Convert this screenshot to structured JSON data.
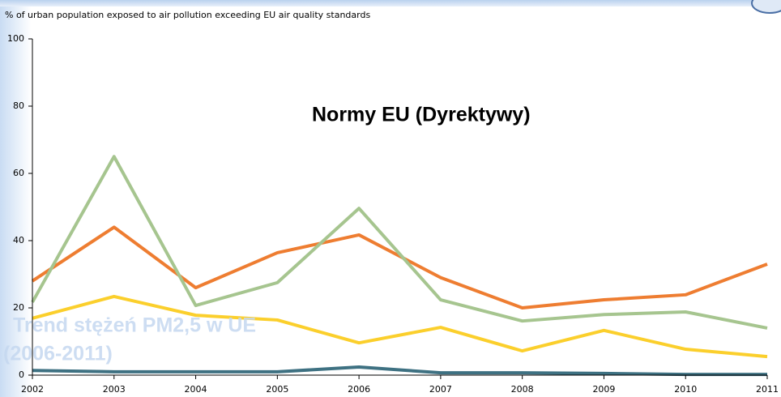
{
  "chart_data": {
    "type": "line",
    "title": "% of urban population exposed to air pollution exceeding EU air quality standards",
    "annotations": [
      "Normy EU (Dyrektywy)",
      "Trend stężeń PM2,5 w UE",
      "(2006-2011)"
    ],
    "x": [
      2002,
      2003,
      2004,
      2005,
      2006,
      2007,
      2008,
      2009,
      2010,
      2011
    ],
    "series": [
      {
        "color": "#ee7d31",
        "values": [
          28,
          44,
          26,
          36.4,
          41.7,
          29,
          20,
          22.4,
          23.9,
          33
        ]
      },
      {
        "color": "#a6c58f",
        "values": [
          21.7,
          65,
          20.7,
          27.5,
          49.6,
          22.4,
          16.1,
          18,
          18.8,
          14
        ]
      },
      {
        "color": "#fbcf2c",
        "values": [
          16.9,
          23.4,
          17.8,
          16.4,
          9.6,
          14.2,
          7.2,
          13.3,
          7.7,
          5.5
        ]
      },
      {
        "color": "#3e7182",
        "values": [
          1.4,
          1,
          1,
          1,
          2.4,
          0.7,
          0.7,
          0.5,
          0.2,
          0.2
        ]
      }
    ],
    "xlim": [
      2002,
      2011
    ],
    "xticks": [
      2002,
      2003,
      2004,
      2005,
      2006,
      2007,
      2008,
      2009,
      2010,
      2011
    ],
    "ylim": [
      0,
      100
    ],
    "yticks": [
      0,
      20,
      40,
      60,
      80,
      100
    ],
    "grid": false
  }
}
